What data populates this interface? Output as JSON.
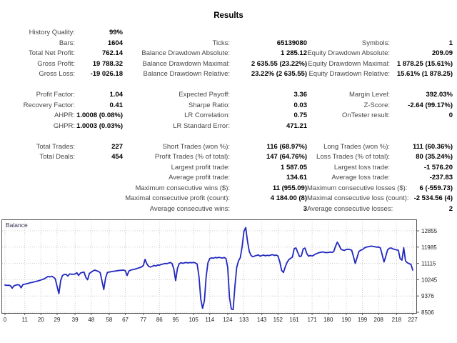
{
  "title": "Results",
  "stats": {
    "groups": [
      {
        "rows": [
          [
            "History Quality:",
            "99%",
            "",
            "",
            "",
            ""
          ],
          [
            "Bars:",
            "1604",
            "Ticks:",
            "65139080",
            "Symbols:",
            "1"
          ],
          [
            "Total Net Profit:",
            "762.14",
            "Balance Drawdown Absolute:",
            "1 285.12",
            "Equity Drawdown Absolute:",
            "209.09"
          ],
          [
            "Gross Profit:",
            "19 788.32",
            "Balance Drawdown Maximal:",
            "2 635.55 (23.22%)",
            "Equity Drawdown Maximal:",
            "1 878.25 (15.61%)"
          ],
          [
            "Gross Loss:",
            "-19 026.18",
            "Balance Drawdown Relative:",
            "23.22% (2 635.55)",
            "Equity Drawdown Relative:",
            "15.61% (1 878.25)"
          ]
        ]
      },
      {
        "rows": [
          [
            "Profit Factor:",
            "1.04",
            "Expected Payoff:",
            "3.36",
            "Margin Level:",
            "392.03%"
          ],
          [
            "Recovery Factor:",
            "0.41",
            "Sharpe Ratio:",
            "0.03",
            "Z-Score:",
            "-2.64 (99.17%)"
          ],
          [
            "AHPR:",
            "1.0008 (0.08%)",
            "LR Correlation:",
            "0.75",
            "OnTester result:",
            "0"
          ],
          [
            "GHPR:",
            "1.0003 (0.03%)",
            "LR Standard Error:",
            "471.21",
            "",
            ""
          ]
        ]
      },
      {
        "rows": [
          [
            "Total Trades:",
            "227",
            "Short Trades (won %):",
            "116 (68.97%)",
            "Long Trades (won %):",
            "111 (60.36%)"
          ],
          [
            "Total Deals:",
            "454",
            "Profit Trades (% of total):",
            "147 (64.76%)",
            "Loss Trades (% of total):",
            "80 (35.24%)"
          ],
          [
            "",
            "",
            "Largest profit trade:",
            "1 587.05",
            "Largest loss trade:",
            "-1 576.20"
          ],
          [
            "",
            "",
            "Average profit trade:",
            "134.61",
            "Average loss trade:",
            "-237.83"
          ],
          [
            "",
            "",
            "Maximum consecutive wins ($):",
            "11 (955.09)",
            "Maximum consecutive losses ($):",
            "6 (-559.73)"
          ],
          [
            "",
            "",
            "Maximal consecutive profit (count):",
            "4 184.00 (8)",
            "Maximal consecutive loss (count):",
            "-2 534.56 (4)"
          ],
          [
            "",
            "",
            "Average consecutive wins:",
            "3",
            "Average consecutive losses:",
            "2"
          ]
        ]
      }
    ]
  },
  "chart_data": {
    "type": "line",
    "title": "Balance",
    "legend_position": "top-left",
    "grid": true,
    "line_color": "#2127bf",
    "border_color": "#555555",
    "grid_color": "#cccccc",
    "xlim": [
      0,
      227
    ],
    "ylim": [
      8468,
      13465
    ],
    "x_ticks": [
      0,
      11,
      20,
      29,
      39,
      48,
      58,
      67,
      77,
      86,
      95,
      105,
      114,
      124,
      133,
      143,
      152,
      161,
      171,
      180,
      190,
      199,
      208,
      218,
      227
    ],
    "y_ticks": [
      12855,
      11985,
      11115,
      10245,
      9376,
      8506
    ],
    "series": [
      {
        "name": "Balance",
        "points": [
          [
            0,
            9960
          ],
          [
            1,
            9940
          ],
          [
            2,
            9950
          ],
          [
            3,
            9930
          ],
          [
            4,
            9790
          ],
          [
            5,
            9920
          ],
          [
            6,
            9950
          ],
          [
            7,
            9980
          ],
          [
            8,
            9960
          ],
          [
            9,
            9810
          ],
          [
            10,
            9990
          ],
          [
            11,
            10010
          ],
          [
            12,
            10030
          ],
          [
            13,
            10050
          ],
          [
            14,
            10080
          ],
          [
            15,
            10100
          ],
          [
            16,
            10120
          ],
          [
            17,
            10150
          ],
          [
            18,
            10170
          ],
          [
            19,
            10200
          ],
          [
            20,
            10230
          ],
          [
            21,
            10260
          ],
          [
            22,
            10300
          ],
          [
            23,
            10360
          ],
          [
            24,
            10420
          ],
          [
            25,
            10390
          ],
          [
            26,
            10430
          ],
          [
            27,
            10380
          ],
          [
            28,
            10290
          ],
          [
            29,
            9900
          ],
          [
            30,
            9500
          ],
          [
            31,
            10200
          ],
          [
            32,
            10470
          ],
          [
            33,
            10520
          ],
          [
            34,
            10530
          ],
          [
            35,
            10440
          ],
          [
            36,
            10550
          ],
          [
            37,
            10540
          ],
          [
            38,
            10530
          ],
          [
            39,
            10550
          ],
          [
            40,
            10620
          ],
          [
            41,
            10470
          ],
          [
            42,
            10600
          ],
          [
            43,
            10630
          ],
          [
            44,
            10650
          ],
          [
            45,
            10370
          ],
          [
            46,
            10240
          ],
          [
            47,
            10580
          ],
          [
            48,
            10650
          ],
          [
            49,
            10710
          ],
          [
            50,
            10760
          ],
          [
            51,
            10720
          ],
          [
            52,
            10690
          ],
          [
            53,
            10620
          ],
          [
            54,
            10180
          ],
          [
            55,
            9720
          ],
          [
            56,
            10340
          ],
          [
            57,
            10630
          ],
          [
            58,
            10650
          ],
          [
            59,
            10670
          ],
          [
            60,
            10690
          ],
          [
            61,
            10700
          ],
          [
            62,
            10720
          ],
          [
            63,
            10730
          ],
          [
            64,
            10740
          ],
          [
            65,
            10750
          ],
          [
            66,
            10760
          ],
          [
            67,
            10720
          ],
          [
            68,
            10470
          ],
          [
            69,
            10710
          ],
          [
            70,
            10760
          ],
          [
            71,
            10780
          ],
          [
            72,
            10800
          ],
          [
            73,
            10830
          ],
          [
            74,
            10860
          ],
          [
            75,
            10890
          ],
          [
            76,
            10930
          ],
          [
            77,
            11000
          ],
          [
            78,
            11330
          ],
          [
            79,
            11090
          ],
          [
            80,
            10950
          ],
          [
            81,
            10920
          ],
          [
            82,
            10960
          ],
          [
            83,
            11010
          ],
          [
            84,
            10970
          ],
          [
            85,
            11030
          ],
          [
            86,
            11020
          ],
          [
            87,
            11060
          ],
          [
            88,
            11080
          ],
          [
            89,
            11110
          ],
          [
            90,
            11100
          ],
          [
            91,
            11130
          ],
          [
            92,
            11160
          ],
          [
            93,
            11110
          ],
          [
            94,
            10820
          ],
          [
            95,
            10200
          ],
          [
            96,
            10850
          ],
          [
            97,
            11100
          ],
          [
            98,
            11150
          ],
          [
            99,
            11120
          ],
          [
            100,
            11150
          ],
          [
            101,
            11160
          ],
          [
            102,
            11140
          ],
          [
            103,
            11160
          ],
          [
            104,
            11150
          ],
          [
            105,
            11170
          ],
          [
            106,
            11140
          ],
          [
            107,
            11080
          ],
          [
            108,
            10400
          ],
          [
            109,
            9200
          ],
          [
            110,
            8720
          ],
          [
            111,
            9100
          ],
          [
            112,
            10400
          ],
          [
            113,
            11150
          ],
          [
            114,
            11380
          ],
          [
            115,
            11410
          ],
          [
            116,
            11390
          ],
          [
            117,
            11430
          ],
          [
            118,
            11410
          ],
          [
            119,
            11440
          ],
          [
            120,
            11420
          ],
          [
            121,
            11400
          ],
          [
            122,
            11430
          ],
          [
            123,
            11380
          ],
          [
            124,
            10900
          ],
          [
            125,
            9300
          ],
          [
            126,
            8680
          ],
          [
            127,
            8650
          ],
          [
            128,
            9900
          ],
          [
            129,
            10900
          ],
          [
            130,
            11250
          ],
          [
            131,
            11420
          ],
          [
            132,
            11980
          ],
          [
            133,
            12820
          ],
          [
            134,
            13030
          ],
          [
            135,
            12300
          ],
          [
            136,
            11750
          ],
          [
            137,
            11540
          ],
          [
            138,
            11470
          ],
          [
            139,
            11510
          ],
          [
            140,
            11540
          ],
          [
            141,
            11570
          ],
          [
            142,
            11500
          ],
          [
            143,
            11530
          ],
          [
            144,
            11560
          ],
          [
            145,
            11520
          ],
          [
            146,
            11550
          ],
          [
            147,
            11530
          ],
          [
            148,
            11560
          ],
          [
            149,
            11580
          ],
          [
            150,
            11540
          ],
          [
            151,
            11560
          ],
          [
            152,
            11510
          ],
          [
            153,
            11190
          ],
          [
            154,
            10740
          ],
          [
            155,
            10630
          ],
          [
            156,
            10920
          ],
          [
            157,
            11160
          ],
          [
            158,
            11310
          ],
          [
            159,
            11390
          ],
          [
            160,
            11450
          ],
          [
            161,
            11900
          ],
          [
            162,
            11940
          ],
          [
            163,
            11700
          ],
          [
            164,
            11480
          ],
          [
            165,
            11510
          ],
          [
            166,
            11890
          ],
          [
            167,
            11930
          ],
          [
            168,
            11650
          ],
          [
            169,
            11500
          ],
          [
            170,
            11540
          ],
          [
            171,
            11510
          ],
          [
            172,
            11560
          ],
          [
            173,
            11620
          ],
          [
            174,
            11660
          ],
          [
            175,
            11690
          ],
          [
            176,
            11710
          ],
          [
            177,
            11730
          ],
          [
            178,
            11700
          ],
          [
            179,
            11690
          ],
          [
            180,
            11700
          ],
          [
            181,
            11720
          ],
          [
            182,
            11700
          ],
          [
            183,
            11740
          ],
          [
            184,
            12020
          ],
          [
            185,
            12250
          ],
          [
            186,
            12080
          ],
          [
            187,
            11880
          ],
          [
            188,
            11830
          ],
          [
            189,
            11810
          ],
          [
            190,
            11860
          ],
          [
            191,
            11870
          ],
          [
            192,
            11850
          ],
          [
            193,
            11820
          ],
          [
            194,
            11480
          ],
          [
            195,
            11110
          ],
          [
            196,
            11420
          ],
          [
            197,
            11740
          ],
          [
            198,
            11820
          ],
          [
            199,
            11850
          ],
          [
            200,
            11930
          ],
          [
            201,
            11980
          ],
          [
            202,
            12000
          ],
          [
            203,
            12020
          ],
          [
            204,
            12040
          ],
          [
            205,
            12020
          ],
          [
            206,
            12000
          ],
          [
            207,
            11980
          ],
          [
            208,
            11990
          ],
          [
            209,
            11940
          ],
          [
            210,
            11580
          ],
          [
            211,
            11190
          ],
          [
            212,
            11500
          ],
          [
            213,
            11840
          ],
          [
            214,
            11920
          ],
          [
            215,
            11940
          ],
          [
            216,
            11890
          ],
          [
            217,
            11860
          ],
          [
            218,
            11840
          ],
          [
            219,
            11810
          ],
          [
            220,
            11360
          ],
          [
            221,
            11290
          ],
          [
            222,
            11950
          ],
          [
            223,
            11250
          ],
          [
            224,
            11150
          ],
          [
            225,
            11100
          ],
          [
            226,
            11060
          ],
          [
            227,
            10760
          ]
        ]
      }
    ]
  }
}
